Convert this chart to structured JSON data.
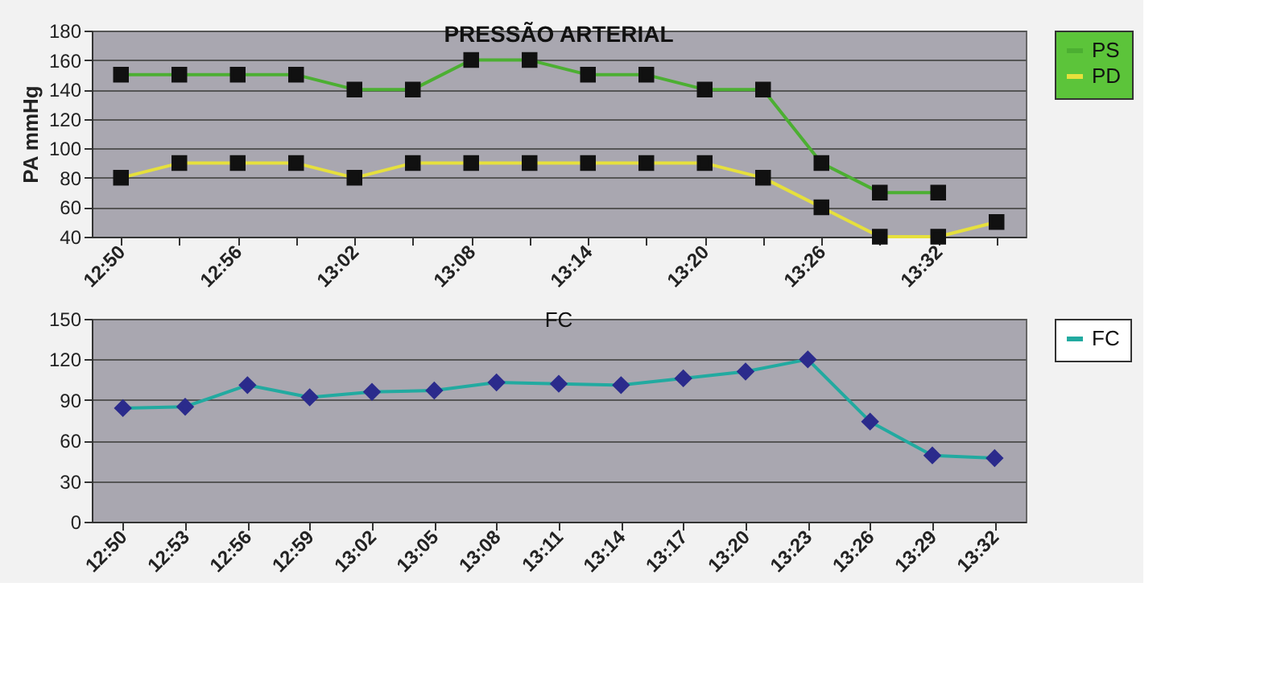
{
  "chart_data": [
    {
      "type": "line",
      "title": "PRESSÃO ARTERIAL",
      "ylabel": "PA mmHg",
      "categories": [
        "12:50",
        null,
        "12:56",
        null,
        "13:02",
        null,
        "13:08",
        null,
        "13:14",
        null,
        "13:20",
        null,
        "13:26",
        null,
        "13:32",
        null
      ],
      "series": [
        {
          "name": "PS",
          "color": "#4caf32",
          "values": [
            150,
            150,
            150,
            150,
            140,
            140,
            160,
            160,
            150,
            150,
            140,
            140,
            90,
            70,
            70,
            null
          ]
        },
        {
          "name": "PD",
          "color": "#e6e03c",
          "values": [
            80,
            90,
            90,
            90,
            80,
            90,
            90,
            90,
            90,
            90,
            90,
            80,
            60,
            40,
            40,
            50
          ]
        }
      ],
      "ylim": [
        40,
        180
      ],
      "yticks": [
        40,
        60,
        80,
        100,
        120,
        140,
        160,
        180
      ],
      "grid": "y",
      "legend": "right",
      "marker": "square"
    },
    {
      "type": "line",
      "title": "FC",
      "categories": [
        "12:50",
        "12:53",
        "12:56",
        "12:59",
        "13:02",
        "13:05",
        "13:08",
        "13:11",
        "13:14",
        "13:17",
        "13:20",
        "13:23",
        "13:26",
        "13:29",
        "13:32"
      ],
      "series": [
        {
          "name": "FC",
          "color": "#22aaa0",
          "values": [
            84,
            85,
            101,
            92,
            96,
            97,
            103,
            102,
            101,
            106,
            111,
            120,
            74,
            49,
            47
          ]
        }
      ],
      "ylim": [
        0,
        150
      ],
      "yticks": [
        0,
        30,
        60,
        90,
        120,
        150
      ],
      "grid": "y",
      "legend": "right",
      "marker": "diamond"
    }
  ]
}
